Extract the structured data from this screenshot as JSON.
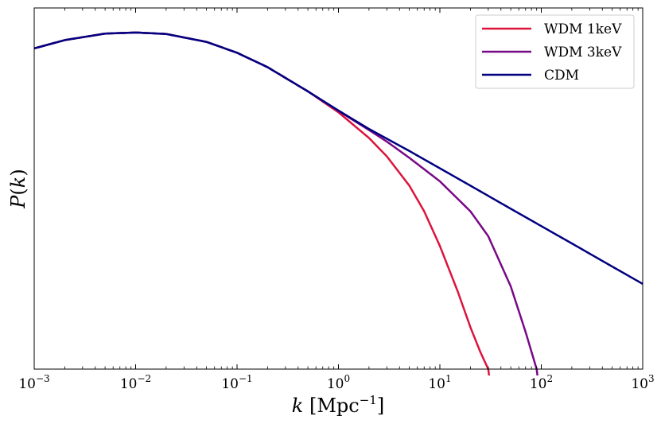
{
  "chart_data": {
    "type": "line",
    "xscale": "log",
    "xlim": [
      0.001,
      1000
    ],
    "ylim": [
      0.0,
      1.0
    ],
    "xticks": [
      {
        "value": 0.001,
        "base": "10",
        "exp": "−3"
      },
      {
        "value": 0.01,
        "base": "10",
        "exp": "−2"
      },
      {
        "value": 0.1,
        "base": "10",
        "exp": "−1"
      },
      {
        "value": 1,
        "base": "10",
        "exp": "0"
      },
      {
        "value": 10,
        "base": "10",
        "exp": "1"
      },
      {
        "value": 100,
        "base": "10",
        "exp": "2"
      },
      {
        "value": 1000,
        "base": "10",
        "exp": "3"
      }
    ],
    "xlabel": "k [Mpc⁻¹]",
    "ylabel": "P(k)",
    "grid": false,
    "legend": "top-right",
    "series": [
      {
        "name": "WDM 1keV",
        "color": "#dc143c",
        "x": [
          0.001,
          0.002,
          0.005,
          0.01,
          0.02,
          0.05,
          0.1,
          0.2,
          0.5,
          1,
          2,
          3,
          5,
          7,
          10,
          15,
          20,
          25,
          30
        ],
        "y": [
          0.888,
          0.911,
          0.929,
          0.932,
          0.928,
          0.906,
          0.876,
          0.836,
          0.769,
          0.711,
          0.64,
          0.589,
          0.508,
          0.437,
          0.341,
          0.215,
          0.116,
          0.048,
          0.0
        ]
      },
      {
        "name": "WDM 3keV",
        "color": "#780987",
        "x": [
          0.001,
          0.002,
          0.005,
          0.01,
          0.02,
          0.05,
          0.1,
          0.2,
          0.5,
          1,
          2,
          3,
          5,
          10,
          20,
          30,
          50,
          70,
          90
        ],
        "y": [
          0.888,
          0.911,
          0.929,
          0.932,
          0.928,
          0.906,
          0.876,
          0.836,
          0.769,
          0.715,
          0.662,
          0.63,
          0.585,
          0.52,
          0.437,
          0.368,
          0.229,
          0.103,
          0.0
        ]
      },
      {
        "name": "CDM",
        "color": "#000080",
        "x": [
          0.001,
          0.002,
          0.005,
          0.01,
          0.02,
          0.05,
          0.1,
          0.2,
          0.5,
          1,
          2,
          5,
          10,
          20,
          50,
          100,
          200,
          500,
          1000
        ],
        "y": [
          0.888,
          0.911,
          0.929,
          0.932,
          0.928,
          0.906,
          0.876,
          0.836,
          0.769,
          0.716,
          0.665,
          0.604,
          0.556,
          0.508,
          0.444,
          0.396,
          0.348,
          0.284,
          0.236
        ]
      }
    ]
  }
}
